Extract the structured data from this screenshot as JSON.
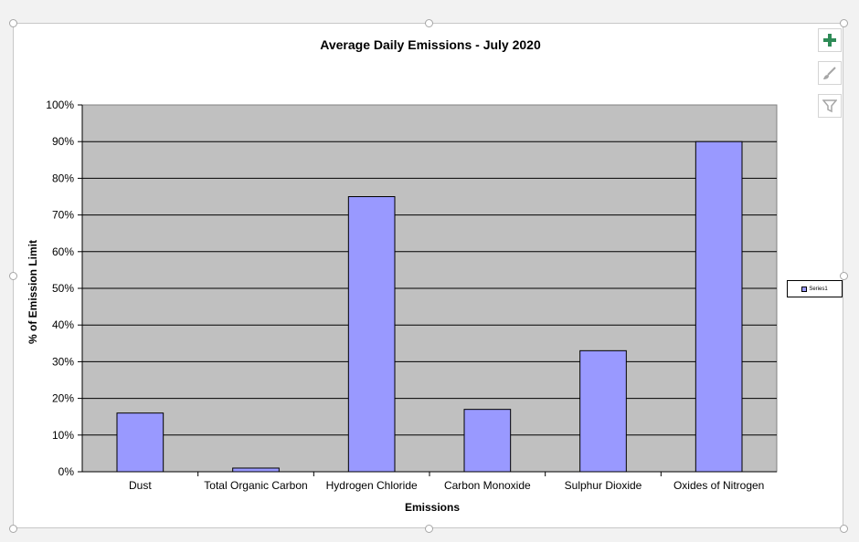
{
  "chart_data": {
    "type": "bar",
    "title": "Average Daily Emissions - July 2020",
    "xlabel": "Emissions",
    "ylabel": "% of Emission Limit",
    "categories": [
      "Dust",
      "Total Organic Carbon",
      "Hydrogen Chloride",
      "Carbon Monoxide",
      "Sulphur Dioxide",
      "Oxides of Nitrogen"
    ],
    "series": [
      {
        "name": "Series1",
        "values": [
          16,
          1,
          75,
          17,
          33,
          90
        ]
      }
    ],
    "ylim": [
      0,
      100
    ],
    "yticks": [
      "0%",
      "10%",
      "20%",
      "30%",
      "40%",
      "50%",
      "60%",
      "70%",
      "80%",
      "90%",
      "100%"
    ],
    "grid": true,
    "legend_position": "right",
    "colors": {
      "bar": "#9999ff",
      "plot_background": "#c0c0c0",
      "bar_border": "#000000"
    }
  },
  "toolbar": {
    "buttons": [
      {
        "name": "chart-elements-button",
        "icon": "plus-icon"
      },
      {
        "name": "chart-styles-button",
        "icon": "brush-icon"
      },
      {
        "name": "chart-filters-button",
        "icon": "filter-icon"
      }
    ]
  }
}
